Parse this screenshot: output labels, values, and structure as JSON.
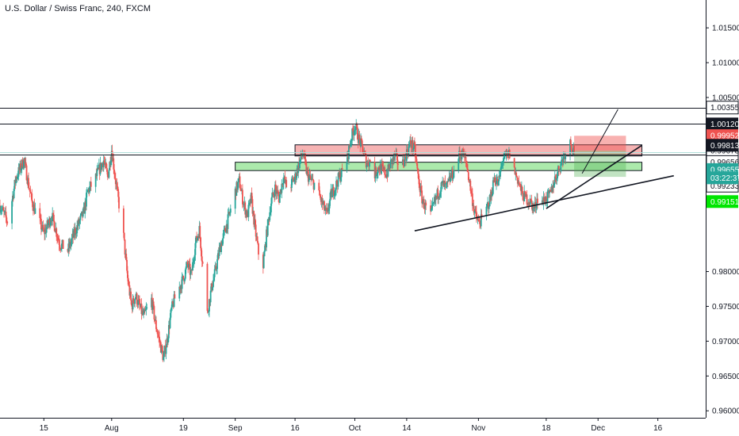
{
  "header": {
    "title": "U.S. Dollar / Swiss Franc, 240, FXCM"
  },
  "colors": {
    "up": "#26a69a",
    "down": "#ef5350",
    "background": "#ffffff",
    "axis": "#131722",
    "resistance_zone_fill": "#f4a6a6",
    "resistance_zone_border": "#131722",
    "support_zone_fill": "#9ee69e",
    "target_box_red": "#f9c4c4",
    "target_box_green": "#c7f0c7",
    "price_line": "#b2dfdb"
  },
  "chart_data": {
    "type": "candlestick",
    "symbol": "USDCHF",
    "interval": "240",
    "source": "FXCM",
    "ylim": [
      0.959,
      1.019
    ],
    "y_ticks": [
      "1.01500",
      "1.01000",
      "1.00500",
      "0.98000",
      "0.97500",
      "0.97000",
      "0.96500",
      "0.96000"
    ],
    "x_ticks": [
      "15",
      "Aug",
      "19",
      "Sep",
      "16",
      "Oct",
      "14",
      "Nov",
      "18",
      "Dec",
      "16"
    ],
    "x_tick_dates": [
      "2019-07-15",
      "2019-08-01",
      "2019-08-19",
      "2019-09-01",
      "2019-09-16",
      "2019-10-01",
      "2019-10-14",
      "2019-11-01",
      "2019-11-18",
      "2019-12-01",
      "2019-12-16"
    ],
    "x_range": [
      "2019-07-04",
      "2019-12-28"
    ],
    "path": [
      [
        "2019-07-04",
        0.9895
      ],
      [
        "2019-07-06",
        0.987
      ],
      [
        "2019-07-08",
        0.9935
      ],
      [
        "2019-07-10",
        0.996
      ],
      [
        "2019-07-12",
        0.99
      ],
      [
        "2019-07-15",
        0.9855
      ],
      [
        "2019-07-17",
        0.988
      ],
      [
        "2019-07-19",
        0.984
      ],
      [
        "2019-07-21",
        0.983
      ],
      [
        "2019-07-23",
        0.986
      ],
      [
        "2019-07-25",
        0.9885
      ],
      [
        "2019-07-26",
        0.9915
      ],
      [
        "2019-07-28",
        0.9935
      ],
      [
        "2019-07-30",
        0.996
      ],
      [
        "2019-07-31",
        0.9935
      ],
      [
        "2019-08-01",
        0.9975
      ],
      [
        "2019-08-02",
        0.993
      ],
      [
        "2019-08-04",
        0.985
      ],
      [
        "2019-08-05",
        0.979
      ],
      [
        "2019-08-06",
        0.975
      ],
      [
        "2019-08-07",
        0.9765
      ],
      [
        "2019-08-09",
        0.9735
      ],
      [
        "2019-08-11",
        0.976
      ],
      [
        "2019-08-12",
        0.9725
      ],
      [
        "2019-08-13",
        0.97
      ],
      [
        "2019-08-14",
        0.9675
      ],
      [
        "2019-08-15",
        0.9705
      ],
      [
        "2019-08-16",
        0.9745
      ],
      [
        "2019-08-17",
        0.9765
      ],
      [
        "2019-08-19",
        0.979
      ],
      [
        "2019-08-20",
        0.981
      ],
      [
        "2019-08-21",
        0.9795
      ],
      [
        "2019-08-22",
        0.984
      ],
      [
        "2019-08-23",
        0.986
      ],
      [
        "2019-08-24",
        0.98
      ],
      [
        "2019-08-25",
        0.974
      ],
      [
        "2019-08-26",
        0.9775
      ],
      [
        "2019-08-27",
        0.98
      ],
      [
        "2019-08-28",
        0.983
      ],
      [
        "2019-08-29",
        0.985
      ],
      [
        "2019-08-30",
        0.987
      ],
      [
        "2019-09-01",
        0.9915
      ],
      [
        "2019-09-02",
        0.993
      ],
      [
        "2019-09-03",
        0.99
      ],
      [
        "2019-09-04",
        0.988
      ],
      [
        "2019-09-05",
        0.9905
      ],
      [
        "2019-09-06",
        0.986
      ],
      [
        "2019-09-07",
        0.982
      ],
      [
        "2019-09-08",
        0.981
      ],
      [
        "2019-09-09",
        0.986
      ],
      [
        "2019-09-10",
        0.99
      ],
      [
        "2019-09-11",
        0.992
      ],
      [
        "2019-09-12",
        0.9905
      ],
      [
        "2019-09-13",
        0.9935
      ],
      [
        "2019-09-14",
        0.992
      ],
      [
        "2019-09-15",
        0.9925
      ],
      [
        "2019-09-16",
        0.9935
      ],
      [
        "2019-09-17",
        0.9955
      ],
      [
        "2019-09-18",
        0.997
      ],
      [
        "2019-09-19",
        0.994
      ],
      [
        "2019-09-20",
        0.993
      ],
      [
        "2019-09-21",
        0.9925
      ],
      [
        "2019-09-23",
        0.9895
      ],
      [
        "2019-09-24",
        0.988
      ],
      [
        "2019-09-25",
        0.991
      ],
      [
        "2019-09-26",
        0.992
      ],
      [
        "2019-09-27",
        0.9935
      ],
      [
        "2019-09-28",
        0.9945
      ],
      [
        "2019-09-29",
        0.996
      ],
      [
        "2019-09-30",
        0.999
      ],
      [
        "2019-10-01",
        1.001
      ],
      [
        "2019-10-02",
        0.999
      ],
      [
        "2019-10-03",
        0.9975
      ],
      [
        "2019-10-04",
        0.9955
      ],
      [
        "2019-10-05",
        0.996
      ],
      [
        "2019-10-06",
        0.994
      ],
      [
        "2019-10-07",
        0.995
      ],
      [
        "2019-10-08",
        0.9945
      ],
      [
        "2019-10-09",
        0.994
      ],
      [
        "2019-10-10",
        0.9955
      ],
      [
        "2019-10-11",
        0.9965
      ],
      [
        "2019-10-12",
        0.9955
      ],
      [
        "2019-10-13",
        0.9955
      ],
      [
        "2019-10-14",
        0.997
      ],
      [
        "2019-10-15",
        0.9985
      ],
      [
        "2019-10-16",
        0.9975
      ],
      [
        "2019-10-17",
        0.993
      ],
      [
        "2019-10-18",
        0.99
      ],
      [
        "2019-10-19",
        0.989
      ],
      [
        "2019-10-20",
        0.988
      ],
      [
        "2019-10-21",
        0.99
      ],
      [
        "2019-10-22",
        0.9915
      ],
      [
        "2019-10-23",
        0.9925
      ],
      [
        "2019-10-24",
        0.992
      ],
      [
        "2019-10-25",
        0.9935
      ],
      [
        "2019-10-26",
        0.9945
      ],
      [
        "2019-10-27",
        0.9965
      ],
      [
        "2019-10-28",
        0.997
      ],
      [
        "2019-10-29",
        0.9955
      ],
      [
        "2019-10-30",
        0.992
      ],
      [
        "2019-10-31",
        0.9885
      ],
      [
        "2019-11-01",
        0.987
      ],
      [
        "2019-11-02",
        0.9875
      ],
      [
        "2019-11-03",
        0.989
      ],
      [
        "2019-11-04",
        0.9905
      ],
      [
        "2019-11-05",
        0.9935
      ],
      [
        "2019-11-06",
        0.9925
      ],
      [
        "2019-11-07",
        0.996
      ],
      [
        "2019-11-08",
        0.9965
      ],
      [
        "2019-11-09",
        0.997
      ],
      [
        "2019-11-10",
        0.9945
      ],
      [
        "2019-11-11",
        0.993
      ],
      [
        "2019-11-12",
        0.991
      ],
      [
        "2019-11-13",
        0.9905
      ],
      [
        "2019-11-14",
        0.99
      ],
      [
        "2019-11-15",
        0.989
      ],
      [
        "2019-11-16",
        0.991
      ],
      [
        "2019-11-17",
        0.99
      ],
      [
        "2019-11-18",
        0.9905
      ],
      [
        "2019-11-19",
        0.991
      ],
      [
        "2019-11-20",
        0.993
      ],
      [
        "2019-11-21",
        0.9945
      ],
      [
        "2019-11-22",
        0.996
      ],
      [
        "2019-11-23",
        0.9975
      ],
      [
        "2019-11-24",
        0.9985
      ],
      [
        "2019-11-25",
        0.9975
      ]
    ],
    "horizontal_lines": [
      {
        "price": 1.00355,
        "label": "1.00355",
        "badge_bg": "#ffffff",
        "badge_fg": "#131722",
        "badge_border": "#131722"
      },
      {
        "price": 1.0012,
        "label": "1.00120",
        "badge_bg": "#131722",
        "badge_fg": "#ffffff"
      },
      {
        "price": 0.99678,
        "label": "0.99678",
        "badge_bg": "#ffffff",
        "badge_fg": "#131722",
        "badge_border": "#131722",
        "badge_price": 0.99738
      },
      {
        "price": 0.99374,
        "label": "0.99374",
        "badge_bg": "#131722",
        "badge_fg": "#ffffff",
        "line": false
      },
      {
        "price": 0.99233,
        "label": "0.99233",
        "badge_bg": "#ffffff",
        "badge_fg": "#131722",
        "badge_border": "#131722",
        "line": false
      }
    ],
    "price_badges": [
      {
        "label": "0.99952",
        "price": 0.99952,
        "bg": "#ef5350",
        "fg": "#ffffff"
      },
      {
        "label": "0.99813",
        "price": 0.99813,
        "bg": "#131722",
        "fg": "#ffffff"
      },
      {
        "label": "0.99656",
        "price": 0.99573,
        "bg": "#ffffff",
        "fg": "#131722",
        "border": "#131722"
      },
      {
        "label": "0.99655",
        "price": 0.99465,
        "bg": "#26a69a",
        "fg": "#ffffff"
      },
      {
        "label": "03:22:37",
        "price": 0.99346,
        "bg": "#26a69a",
        "fg": "#ffffff"
      },
      {
        "label": "0.99151",
        "price": 0.99005,
        "bg": "#00e600",
        "fg": "#ffffff"
      }
    ],
    "zones": [
      {
        "kind": "resistance",
        "from": "2019-09-16",
        "to": "2019-12-12",
        "top": 0.9982,
        "bottom": 0.9966
      },
      {
        "kind": "support",
        "from": "2019-09-01",
        "to": "2019-12-12",
        "top": 0.9957,
        "bottom": 0.9945
      }
    ],
    "target_boxes": [
      {
        "kind": "red",
        "from": "2019-11-25",
        "to": "2019-12-08",
        "top": 0.9995,
        "bottom": 0.99735
      },
      {
        "kind": "green",
        "from": "2019-11-25",
        "to": "2019-12-08",
        "top": 0.99735,
        "bottom": 0.9936
      }
    ],
    "trend_lines": [
      {
        "from": [
          "2019-10-16",
          0.98585
        ],
        "to": [
          "2019-12-20",
          0.99376
        ]
      },
      {
        "from": [
          "2019-11-18",
          0.98905
        ],
        "to": [
          "2019-12-12",
          0.99813
        ]
      },
      {
        "from": [
          "2019-11-27",
          0.9941
        ],
        "to": [
          "2019-12-06",
          1.0033
        ]
      }
    ],
    "current_price_line": 0.99655
  }
}
